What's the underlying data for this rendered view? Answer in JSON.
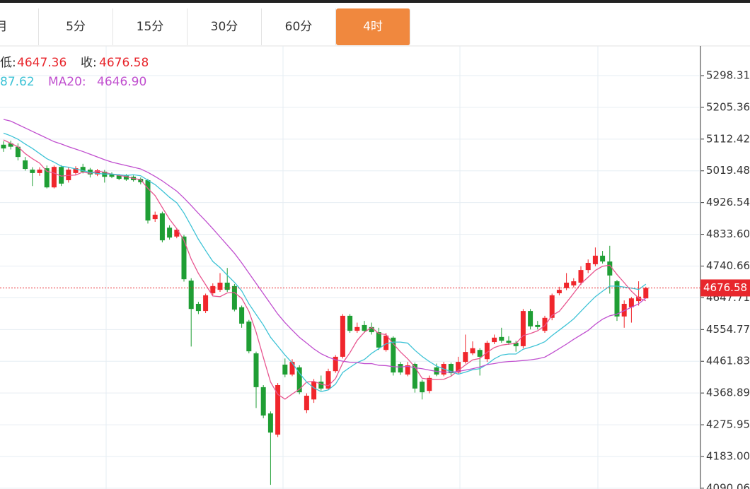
{
  "tabs": [
    "月",
    "5分",
    "15分",
    "30分",
    "60分",
    "4时"
  ],
  "legend": {
    "low_label": "低:",
    "low_value": "4647.36",
    "close_label": "收:",
    "close_value": "4676.58",
    "ma10_value": "87.62",
    "ma20_label": "MA20:",
    "ma20_value": "4646.90"
  },
  "chart_data": {
    "type": "candlestick",
    "up_color": "#f0262c",
    "down_color": "#1f9e34",
    "ylim": [
      4087.8,
      5385.2
    ],
    "yticks": [
      5298.31,
      5205.36,
      5112.42,
      5019.48,
      4926.54,
      {
        "value": 4833.6,
        "label": "4833.60"
      },
      4740.66,
      4647.71,
      4554.77,
      4461.83,
      4368.89,
      4275.95,
      {
        "value": 4183,
        "label": "4183.00"
      },
      4090.06
    ],
    "grid": true,
    "open": [
      5096,
      5100,
      5090,
      5050,
      5023,
      5013,
      5027,
      4971,
      5031,
      4992,
      5013,
      5031,
      5023,
      5009,
      5017,
      5010,
      5006,
      5006,
      5002,
      4996,
      4992,
      4878,
      4895,
      4853,
      4827,
      4827,
      4698,
      4630,
      4609,
      4661,
      4671,
      4692,
      4682,
      4620,
      4578,
      4485,
      4386,
      4309,
      4247,
      4452,
      4423,
      4444,
      4319,
      4350,
      4402,
      4382,
      4433,
      4475,
      4595,
      4551,
      4568,
      4562,
      4547,
      4495,
      4531,
      4454,
      4423,
      4454,
      4402,
      4375,
      4444,
      4423,
      4454,
      4429,
      4460,
      4485,
      4495,
      4468,
      4518,
      4533,
      4522,
      4516,
      4506,
      4609,
      4568,
      4551,
      4589,
      4661,
      4676,
      4684,
      4692,
      4729,
      4746,
      4771,
      4754,
      4696,
      4593,
      4620,
      4638,
      4646
    ],
    "high": [
      5106,
      5108,
      5100,
      5060,
      5030,
      5030,
      5035,
      5035,
      5036,
      5030,
      5033,
      5040,
      5028,
      5025,
      5022,
      5015,
      5010,
      5010,
      5006,
      5000,
      4996,
      4900,
      4900,
      4860,
      4852,
      4832,
      4705,
      4636,
      4660,
      4690,
      4720,
      4735,
      4688,
      4625,
      4583,
      4490,
      4392,
      4315,
      4398,
      4470,
      4468,
      4450,
      4368,
      4410,
      4420,
      4440,
      4480,
      4600,
      4600,
      4575,
      4580,
      4575,
      4560,
      4545,
      4535,
      4460,
      4460,
      4458,
      4408,
      4420,
      4455,
      4460,
      4458,
      4475,
      4540,
      4520,
      4500,
      4522,
      4540,
      4560,
      4535,
      4522,
      4615,
      4615,
      4580,
      4595,
      4660,
      4680,
      4720,
      4705,
      4740,
      4760,
      4795,
      4785,
      4800,
      4700,
      4640,
      4650,
      4696,
      4680
    ],
    "low": [
      5075,
      5082,
      5050,
      5020,
      4975,
      5005,
      4968,
      4968,
      4975,
      4985,
      5008,
      5012,
      5000,
      5004,
      4985,
      4998,
      4992,
      4990,
      4988,
      4980,
      4865,
      4870,
      4810,
      4818,
      4822,
      4695,
      4505,
      4600,
      4603,
      4655,
      4665,
      4665,
      4608,
      4560,
      4485,
      4325,
      4295,
      4100,
      4240,
      4415,
      4418,
      4365,
      4310,
      4340,
      4376,
      4378,
      4428,
      4470,
      4545,
      4545,
      4545,
      4540,
      4495,
      4490,
      4420,
      4422,
      4418,
      4370,
      4350,
      4368,
      4418,
      4418,
      4420,
      4425,
      4455,
      4480,
      4420,
      4460,
      4512,
      4516,
      4510,
      4490,
      4500,
      4555,
      4555,
      4545,
      4582,
      4655,
      4670,
      4678,
      4685,
      4720,
      4740,
      4748,
      4660,
      4580,
      4560,
      4575,
      4625,
      4647.36
    ],
    "close": [
      5085,
      5090,
      5060,
      5025,
      5013,
      5023,
      4971,
      5031,
      4982,
      5023,
      5027,
      5017,
      5009,
      5021,
      5002,
      5002,
      4996,
      4994,
      4992,
      4986,
      4874,
      4891,
      4816,
      4824,
      4847,
      4702,
      4615,
      4609,
      4655,
      4682,
      4692,
      4671,
      4613,
      4572,
      4491,
      4386,
      4303,
      4253,
      4392,
      4423,
      4460,
      4371,
      4361,
      4402,
      4382,
      4433,
      4475,
      4595,
      4551,
      4562,
      4551,
      4547,
      4502,
      4537,
      4429,
      4429,
      4450,
      4382,
      4371,
      4413,
      4423,
      4454,
      4427,
      4460,
      4489,
      4500,
      4475,
      4516,
      4531,
      4522,
      4516,
      4506,
      4609,
      4564,
      4562,
      4589,
      4655,
      4671,
      4692,
      4696,
      4729,
      4750,
      4771,
      4754,
      4713,
      4593,
      4630,
      4646,
      4651,
      4676.58
    ],
    "lines": [
      {
        "color": "#e8558f",
        "values": [
          5110,
          5100,
          5090,
          5070,
          5055,
          5042,
          5018,
          5013,
          5004,
          5006,
          5007,
          5016,
          5012,
          5019,
          5015,
          5010,
          5006,
          5003,
          4997,
          4994,
          4968,
          4947,
          4912,
          4878,
          4850,
          4816,
          4761,
          4719,
          4686,
          4653,
          4651,
          4662,
          4663,
          4646,
          4608,
          4547,
          4473,
          4401,
          4365,
          4351,
          4366,
          4380,
          4401,
          4403,
          4395,
          4390,
          4411,
          4457,
          4487,
          4523,
          4547,
          4561,
          4543,
          4540,
          4513,
          4489,
          4469,
          4445,
          4412,
          4409,
          4408,
          4409,
          4418,
          4435,
          4451,
          4466,
          4470,
          4488,
          4502,
          4509,
          4512,
          4514,
          4537,
          4543,
          4551,
          4566,
          4596,
          4608,
          4634,
          4661,
          4689,
          4708,
          4728,
          4740,
          4743,
          4716,
          4692,
          4667,
          4647,
          4639
        ]
      },
      {
        "color": "#3ec3d6",
        "values": [
          5130,
          5122,
          5112,
          5098,
          5085,
          5070,
          5055,
          5045,
          5033,
          5030,
          5025,
          5020,
          5015,
          5012,
          5010,
          5010,
          5008,
          5006,
          5008,
          5005,
          4992,
          4979,
          4961,
          4942,
          4926,
          4896,
          4858,
          4819,
          4786,
          4754,
          4736,
          4714,
          4693,
          4668,
          4630,
          4599,
          4568,
          4532,
          4506,
          4480,
          4457,
          4427,
          4401,
          4384,
          4373,
          4378,
          4395,
          4429,
          4444,
          4458,
          4467,
          4485,
          4499,
          4513,
          4518,
          4518,
          4515,
          4494,
          4476,
          4461,
          4448,
          4439,
          4432,
          4424,
          4430,
          4437,
          4440,
          4453,
          4469,
          4480,
          4483,
          4483,
          4497,
          4503,
          4510,
          4519,
          4537,
          4553,
          4569,
          4586,
          4608,
          4630,
          4651,
          4667,
          4682,
          4682,
          4679,
          4676,
          4672,
          4687.62
        ]
      },
      {
        "color": "#c04fcf",
        "values": [
          5170,
          5165,
          5155,
          5145,
          5135,
          5125,
          5115,
          5105,
          5098,
          5090,
          5083,
          5076,
          5068,
          5060,
          5052,
          5045,
          5040,
          5035,
          5030,
          5025,
          5015,
          5003,
          4990,
          4975,
          4960,
          4940,
          4918,
          4895,
          4873,
          4850,
          4826,
          4802,
          4778,
          4750,
          4720,
          4690,
          4660,
          4630,
          4600,
          4575,
          4553,
          4532,
          4515,
          4498,
          4484,
          4474,
          4466,
          4462,
          4459,
          4458,
          4455,
          4455,
          4450,
          4449,
          4446,
          4445,
          4447,
          4443,
          4440,
          4436,
          4432,
          4430,
          4430,
          4432,
          4436,
          4440,
          4445,
          4452,
          4455,
          4459,
          4461,
          4462,
          4464,
          4466,
          4469,
          4474,
          4486,
          4499,
          4512,
          4526,
          4539,
          4552,
          4570,
          4585,
          4595,
          4600,
          4610,
          4620,
          4630,
          4646.9
        ]
      }
    ]
  }
}
